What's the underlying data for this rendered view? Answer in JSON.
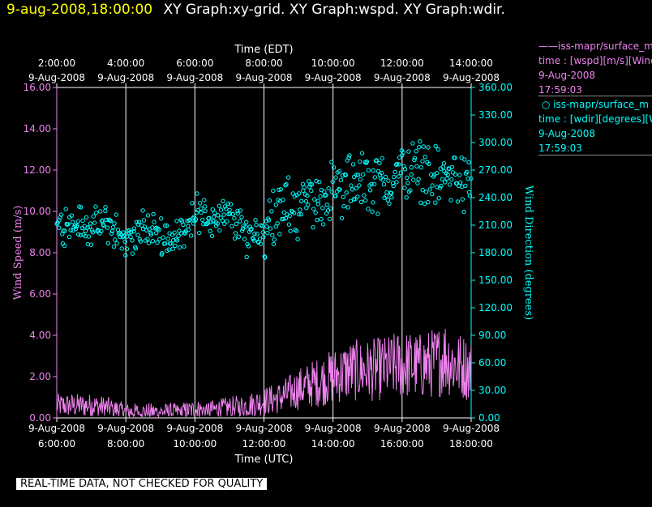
{
  "header": {
    "timestamp": "9-aug-2008,18:00:00",
    "graphs": "XY Graph:xy-grid.  XY Graph:wspd.  XY Graph:wdir."
  },
  "legend": {
    "wspd": {
      "name": "iss-mapr/surface_m",
      "var": "time : [wspd][m/s][Wind",
      "date": "9-Aug-2008",
      "time": "17:59:03"
    },
    "wdir": {
      "name": "iss-mapr/surface_m",
      "var": "time : [wdir][degrees][W",
      "date": "9-Aug-2008",
      "time": "17:59:03"
    }
  },
  "banner": "REAL-TIME DATA, NOT CHECKED FOR QUALITY",
  "colors": {
    "wspd": "#ee82ee",
    "wdir": "#00ffff",
    "grid": "#ffffff",
    "title": "#ffff00"
  },
  "chart_data": {
    "type": "line",
    "title": "XY Graph:xy-grid.  XY Graph:wspd.  XY Graph:wdir.",
    "xlabel": "Time (UTC)",
    "x2label": "Time (EDT)",
    "ylabel": "Wind Speed (m/s)",
    "y2label": "Wind Direction (degrees)",
    "xlim": [
      6,
      18
    ],
    "ylim": [
      0,
      16
    ],
    "y2lim": [
      0,
      360
    ],
    "grid": true,
    "x_ticks_utc": [
      {
        "date": "9-Aug-2008",
        "time": "6:00:00"
      },
      {
        "date": "9-Aug-2008",
        "time": "8:00:00"
      },
      {
        "date": "9-Aug-2008",
        "time": "10:00:00"
      },
      {
        "date": "9-Aug-2008",
        "time": "12:00:00"
      },
      {
        "date": "9-Aug-2008",
        "time": "14:00:00"
      },
      {
        "date": "9-Aug-2008",
        "time": "16:00:00"
      },
      {
        "date": "9-Aug-2008",
        "time": "18:00:00"
      }
    ],
    "x_ticks_edt": [
      {
        "time": "2:00:00",
        "date": "9-Aug-2008"
      },
      {
        "time": "4:00:00",
        "date": "9-Aug-2008"
      },
      {
        "time": "6:00:00",
        "date": "9-Aug-2008"
      },
      {
        "time": "8:00:00",
        "date": "9-Aug-2008"
      },
      {
        "time": "10:00:00",
        "date": "9-Aug-2008"
      },
      {
        "time": "12:00:00",
        "date": "9-Aug-2008"
      },
      {
        "time": "14:00:00",
        "date": "9-Aug-2008"
      }
    ],
    "y_ticks": [
      "0.00",
      "2.00",
      "4.00",
      "6.00",
      "8.00",
      "10.00",
      "12.00",
      "14.00",
      "16.00"
    ],
    "y2_ticks": [
      "0.00",
      "30.00",
      "60.00",
      "90.00",
      "120.00",
      "150.00",
      "180.00",
      "210.00",
      "240.00",
      "270.00",
      "300.00",
      "330.00",
      "360.00"
    ],
    "series": [
      {
        "name": "wspd",
        "units": "m/s",
        "axis": "left",
        "style": "line",
        "x": [
          6.0,
          6.5,
          7.0,
          7.5,
          8.0,
          8.5,
          9.0,
          9.5,
          10.0,
          10.5,
          11.0,
          11.5,
          12.0,
          12.5,
          13.0,
          13.5,
          14.0,
          14.5,
          15.0,
          15.5,
          16.0,
          16.5,
          17.0,
          17.25,
          17.5,
          17.75,
          18.0
        ],
        "values": [
          0.6,
          0.6,
          0.6,
          0.5,
          0.3,
          0.3,
          0.3,
          0.3,
          0.4,
          0.4,
          0.5,
          0.6,
          0.8,
          1.0,
          1.4,
          1.7,
          2.0,
          2.3,
          2.3,
          2.4,
          2.6,
          2.5,
          2.7,
          3.0,
          2.6,
          2.5,
          2.3
        ]
      },
      {
        "name": "wdir",
        "units": "degrees",
        "axis": "right",
        "style": "scatter",
        "x": [
          6.0,
          6.5,
          7.0,
          7.5,
          8.0,
          8.5,
          9.0,
          9.5,
          10.0,
          10.5,
          11.0,
          11.5,
          12.0,
          12.5,
          13.0,
          13.5,
          14.0,
          14.5,
          15.0,
          15.5,
          16.0,
          16.5,
          17.0,
          17.5,
          18.0
        ],
        "values": [
          210,
          215,
          205,
          212,
          190,
          205,
          200,
          195,
          225,
          215,
          220,
          200,
          205,
          225,
          230,
          238,
          245,
          255,
          258,
          255,
          268,
          272,
          262,
          262,
          255
        ]
      }
    ]
  }
}
